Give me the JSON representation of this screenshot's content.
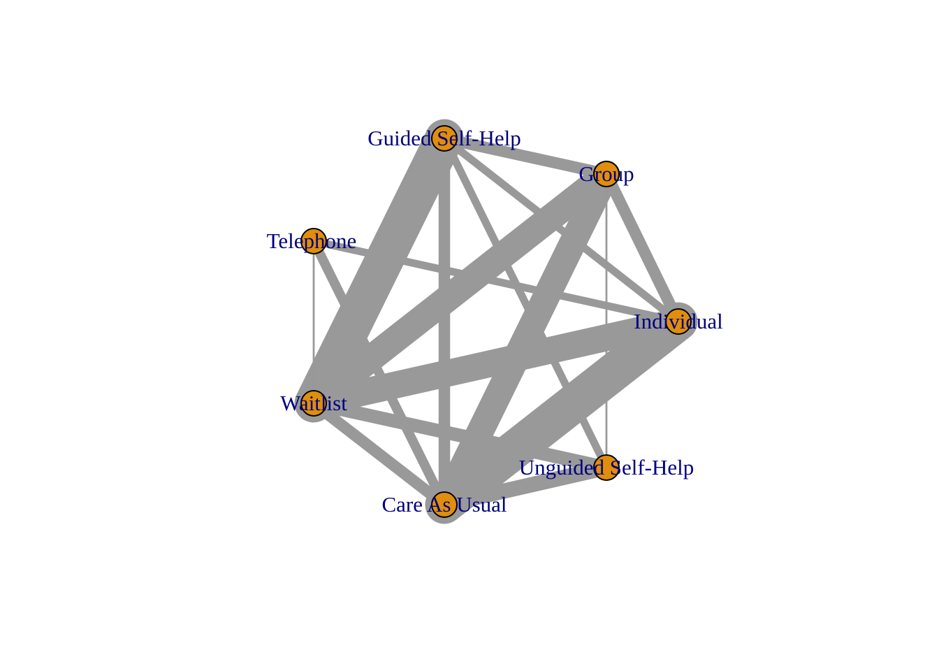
{
  "network": {
    "node_color": "#E08E0B",
    "edge_color": "#999999",
    "label_color": "#000080",
    "nodes": [
      {
        "id": "gsh",
        "label": "Guided Self-Help"
      },
      {
        "id": "grp",
        "label": "Group"
      },
      {
        "id": "tel",
        "label": "Telephone"
      },
      {
        "id": "ind",
        "label": "Individual"
      },
      {
        "id": "wl",
        "label": "Waitlist"
      },
      {
        "id": "ush",
        "label": "Unguided Self-Help"
      },
      {
        "id": "cau",
        "label": "Care As Usual"
      }
    ],
    "edges": [
      {
        "from": "gsh",
        "to": "wl",
        "weight": 10
      },
      {
        "from": "gsh",
        "to": "cau",
        "weight": 3
      },
      {
        "from": "gsh",
        "to": "grp",
        "weight": 3
      },
      {
        "from": "gsh",
        "to": "ind",
        "weight": 2
      },
      {
        "from": "gsh",
        "to": "ush",
        "weight": 2
      },
      {
        "from": "grp",
        "to": "wl",
        "weight": 7
      },
      {
        "from": "grp",
        "to": "cau",
        "weight": 7
      },
      {
        "from": "grp",
        "to": "ind",
        "weight": 3
      },
      {
        "from": "grp",
        "to": "ush",
        "weight": 0.5
      },
      {
        "from": "tel",
        "to": "ind",
        "weight": 2
      },
      {
        "from": "tel",
        "to": "cau",
        "weight": 2.5
      },
      {
        "from": "tel",
        "to": "wl",
        "weight": 0.5
      },
      {
        "from": "ind",
        "to": "wl",
        "weight": 7
      },
      {
        "from": "ind",
        "to": "cau",
        "weight": 10
      },
      {
        "from": "wl",
        "to": "ush",
        "weight": 3.5
      },
      {
        "from": "wl",
        "to": "cau",
        "weight": 3
      },
      {
        "from": "ush",
        "to": "cau",
        "weight": 4
      }
    ]
  }
}
